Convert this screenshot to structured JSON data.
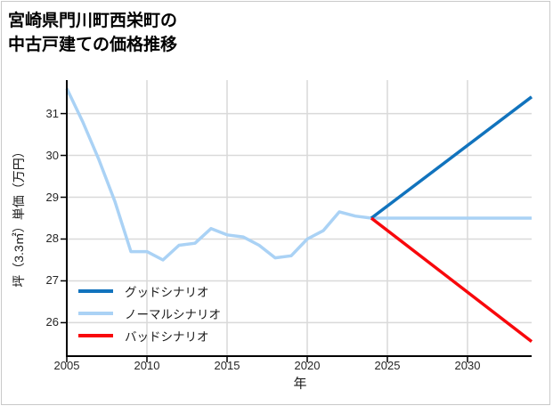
{
  "header": {
    "title_line1": "宮崎県門川町西栄町の",
    "title_line2": "中古戸建ての価格推移"
  },
  "chart_data": {
    "type": "line",
    "title": "宮崎県門川町西栄町の中古戸建ての価格推移",
    "xlabel": "年",
    "ylabel": "坪（3.3㎡）単価（万円）",
    "xlim": [
      2005,
      2034
    ],
    "ylim": [
      25.2,
      31.8
    ],
    "x_ticks": [
      2005,
      2010,
      2015,
      2020,
      2025,
      2030
    ],
    "y_ticks": [
      26,
      27,
      28,
      29,
      30,
      31
    ],
    "grid": true,
    "legend_position": "lower left",
    "series": [
      {
        "name": "グッドシナリオ",
        "color": "#1173bd",
        "x": [
          2024,
          2034
        ],
        "values": [
          28.5,
          31.4
        ]
      },
      {
        "name": "ノーマルシナリオ",
        "color": "#aad2f5",
        "x": [
          2005,
          2006,
          2007,
          2008,
          2009,
          2010,
          2011,
          2012,
          2013,
          2014,
          2015,
          2016,
          2017,
          2018,
          2019,
          2020,
          2021,
          2022,
          2023,
          2024,
          2034
        ],
        "values": [
          31.6,
          30.8,
          29.9,
          28.9,
          27.7,
          27.7,
          27.5,
          27.85,
          27.9,
          28.25,
          28.1,
          28.05,
          27.85,
          27.55,
          27.6,
          28.0,
          28.2,
          28.65,
          28.55,
          28.5,
          28.5
        ]
      },
      {
        "name": "バッドシナリオ",
        "color": "#f8080c",
        "x": [
          2024,
          2034
        ],
        "values": [
          28.5,
          25.55
        ]
      }
    ]
  }
}
